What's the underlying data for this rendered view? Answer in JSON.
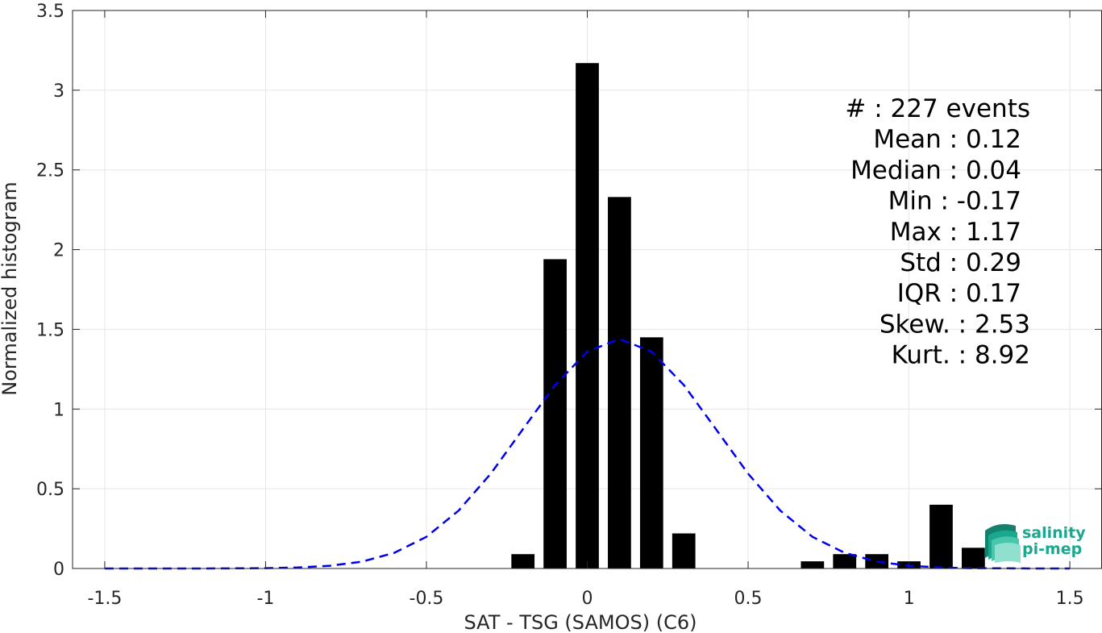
{
  "chart_data": {
    "type": "bar",
    "xlabel": "SAT - TSG (SAMOS) (C6)",
    "ylabel": "Normalized histogram",
    "xlim": [
      -1.6,
      1.6
    ],
    "ylim": [
      0,
      3.5
    ],
    "x_ticks": [
      "-1.5",
      "-1",
      "-0.5",
      "0",
      "0.5",
      "1",
      "1.5"
    ],
    "y_ticks": [
      "0",
      "0.5",
      "1",
      "1.5",
      "2",
      "2.5",
      "3",
      "3.5"
    ],
    "grid": true,
    "bars": {
      "color": "#000000",
      "x": [
        -0.2,
        -0.1,
        0.0,
        0.1,
        0.2,
        0.3,
        0.7,
        0.8,
        0.9,
        1.0,
        1.1,
        1.2
      ],
      "values": [
        0.09,
        1.94,
        3.17,
        2.33,
        1.45,
        0.22,
        0.045,
        0.09,
        0.09,
        0.045,
        0.4,
        0.13
      ]
    },
    "fit_curve": {
      "style": "dashed",
      "color": "#0000ee",
      "x": [
        -1.5,
        -1.4,
        -1.3,
        -1.2,
        -1.1,
        -1.0,
        -0.9,
        -0.8,
        -0.7,
        -0.6,
        -0.5,
        -0.4,
        -0.3,
        -0.2,
        -0.1,
        0.0,
        0.1,
        0.2,
        0.3,
        0.4,
        0.5,
        0.6,
        0.7,
        0.8,
        0.9,
        1.0,
        1.1,
        1.2,
        1.3,
        1.4,
        1.5
      ],
      "y": [
        0.0,
        0.0,
        0.0,
        0.0,
        0.001,
        0.002,
        0.006,
        0.017,
        0.043,
        0.098,
        0.199,
        0.363,
        0.595,
        0.874,
        1.151,
        1.36,
        1.44,
        1.36,
        1.151,
        0.874,
        0.595,
        0.363,
        0.199,
        0.098,
        0.043,
        0.017,
        0.006,
        0.002,
        0.001,
        0.0,
        0.0
      ]
    },
    "stats": [
      "#  : 227 events",
      "Mean : 0.12",
      "Median : 0.04",
      "Min : -0.17",
      "Max : 1.17",
      "Std : 0.29",
      "IQR : 0.17",
      "Skew. : 2.53",
      "Kurt. : 8.92"
    ]
  },
  "logo": {
    "line1": "salinity",
    "line2": "pi-mep"
  },
  "colors": {
    "bar": "#000000",
    "fit": "#0000ee",
    "grid": "#e6e6e6",
    "axis": "#262626",
    "logo": "#1aa88f"
  }
}
